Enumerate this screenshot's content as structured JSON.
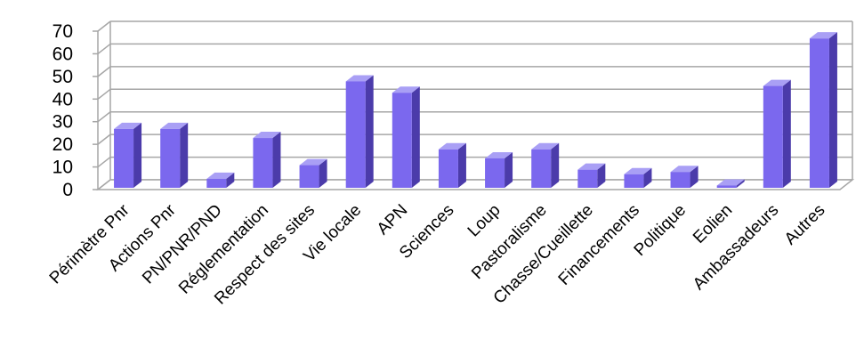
{
  "chart_data": {
    "type": "bar",
    "categories": [
      "Périmètre Pnr",
      "Actions Pnr",
      "PN/PNR/PND",
      "Réglementation",
      "Respect des sites",
      "Vie locale",
      "APN",
      "Sciences",
      "Loup",
      "Pastoralisme",
      "Chasse/Cueillette",
      "Financements",
      "Politique",
      "Eolien",
      "Ambassadeurs",
      "Autres"
    ],
    "values": [
      26,
      26,
      4,
      22,
      10,
      47,
      42,
      17,
      13,
      17,
      8,
      6,
      7,
      1,
      45,
      66
    ],
    "ylim": [
      0,
      70
    ],
    "yticks": [
      0,
      10,
      20,
      30,
      40,
      50,
      60,
      70
    ],
    "grid": true,
    "legend": "none",
    "style": "3d-column"
  },
  "colors": {
    "bar_front": "#7b68ee",
    "bar_side": "#4b3baa",
    "bar_top": "#a99ff5",
    "grid": "#a6a6a6",
    "axis": "#a6a6a6"
  }
}
